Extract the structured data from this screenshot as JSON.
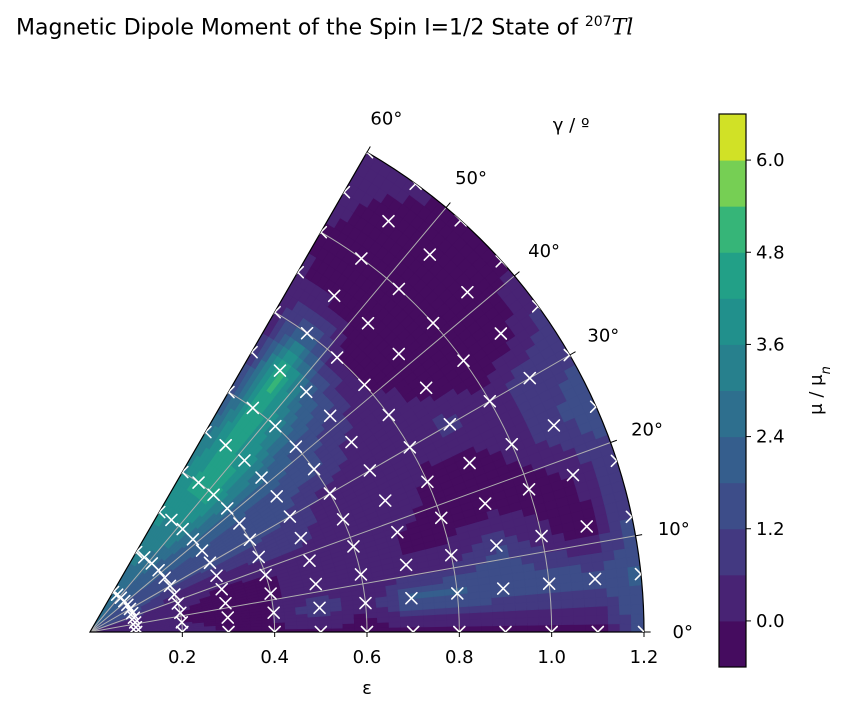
{
  "chart_data": {
    "type": "polar contour (wedge) with scatter markers",
    "title": {
      "text": "Magnetic Dipole Moment of the Spin I=1/2 State of",
      "sup": "207",
      "nucleus": "Tl"
    },
    "radial_axis": {
      "label": "ε",
      "range": [
        0,
        1.2
      ],
      "ticks": [
        "0.2",
        "0.4",
        "0.6",
        "0.8",
        "1.0",
        "1.2"
      ]
    },
    "angular_axis": {
      "label": "γ / º",
      "range_deg": [
        0,
        60
      ],
      "ticks": [
        "0°",
        "10°",
        "20°",
        "30°",
        "40°",
        "50°",
        "60°"
      ]
    },
    "colorbar": {
      "label_prefix": "μ / μ",
      "label_sub": "n",
      "range": [
        -0.6,
        6.6
      ],
      "ticks": [
        "0.0",
        "1.2",
        "2.4",
        "3.6",
        "4.8",
        "6.0"
      ],
      "colormap": "viridis",
      "levels": 12
    },
    "grid": true,
    "marker": "x",
    "marker_color": "#ffffff",
    "value_field": {
      "eps": [
        0.1,
        0.2,
        0.3,
        0.4,
        0.5,
        0.6,
        0.7,
        0.8,
        0.9,
        1.0,
        1.1,
        1.2
      ],
      "gamma_deg": [
        0,
        6,
        12,
        18,
        24,
        30,
        36,
        42,
        48,
        54,
        60
      ],
      "mu": [
        [
          0.6,
          0.3,
          0.5,
          0.6,
          1.3,
          1.4,
          1.6,
          1.9,
          2.0,
          2.5,
          2.5
        ],
        [
          0.2,
          0.0,
          0.0,
          0.2,
          0.5,
          1.3,
          1.6,
          2.0,
          2.5,
          3.0,
          3.2
        ],
        [
          0.0,
          -0.1,
          -0.2,
          -0.1,
          0.4,
          1.5,
          1.8,
          2.5,
          3.5,
          3.5,
          3.8
        ],
        [
          -0.1,
          0.0,
          -0.1,
          0.0,
          0.8,
          1.4,
          1.6,
          2.6,
          4.4,
          4.6,
          3.5
        ],
        [
          -0.2,
          1.2,
          0.2,
          0.1,
          0.8,
          1.2,
          1.4,
          2.6,
          4.1,
          4.3,
          3.0
        ],
        [
          -0.3,
          0.0,
          0.1,
          0.0,
          0.0,
          0.2,
          1.4,
          1.6,
          3.4,
          4.8,
          1.5
        ],
        [
          -0.4,
          2.0,
          0.0,
          0.0,
          0.7,
          0.4,
          0.3,
          1.2,
          2.3,
          5.2,
          0.5
        ],
        [
          -0.5,
          2.0,
          0.1,
          -0.3,
          -0.1,
          0.0,
          0.5,
          -0.2,
          0.0,
          2.2,
          0.2
        ],
        [
          -0.5,
          1.7,
          1.3,
          -0.4,
          -0.4,
          1.0,
          -0.3,
          -0.4,
          -0.5,
          -0.3,
          0.1
        ],
        [
          -0.6,
          1.8,
          0.2,
          -0.3,
          0.2,
          0.1,
          -0.5,
          -0.5,
          -0.2,
          -0.5,
          0.0
        ],
        [
          -0.5,
          1.6,
          -0.4,
          0.0,
          1.0,
          1.2,
          -0.4,
          0.0,
          -0.4,
          -0.3,
          0.2
        ],
        [
          1.5,
          2.0,
          1.4,
          1.1,
          1.6,
          1.1,
          0.7,
          -0.2,
          -0.4,
          0.2,
          0.3
        ]
      ]
    },
    "markers": {
      "eps": [
        0.1,
        0.2,
        0.3,
        0.4,
        0.5,
        0.6,
        0.7,
        0.8,
        0.9,
        1.0,
        1.1,
        1.2
      ],
      "gamma_deg": [
        0,
        6,
        12,
        18,
        24,
        30,
        36,
        42,
        48,
        54,
        60
      ]
    }
  }
}
